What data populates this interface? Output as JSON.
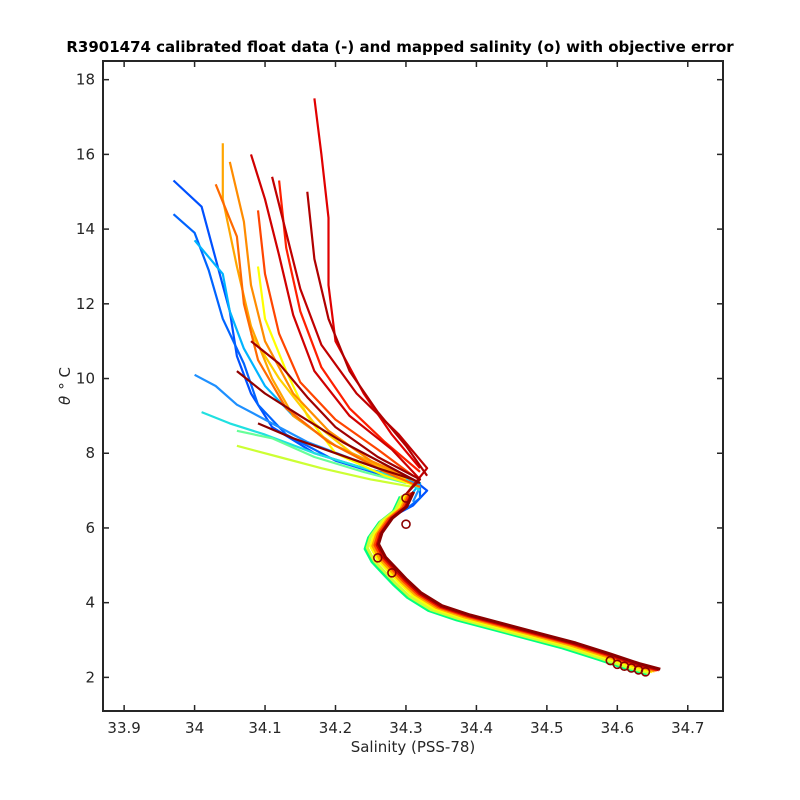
{
  "chart_data": {
    "type": "line",
    "title": "R3901474 calibrated float data (-) and mapped salinity (o) with objective error",
    "xlabel": "Salinity (PSS-78)",
    "ylabel_symbol": "θ",
    "ylabel_unit": "° C",
    "xlim": [
      33.87,
      34.75
    ],
    "ylim": [
      1.1,
      18.5
    ],
    "xticks": [
      33.9,
      34.0,
      34.1,
      34.2,
      34.3,
      34.4,
      34.5,
      34.6,
      34.7
    ],
    "xtick_labels": [
      "33.9",
      "34",
      "34.1",
      "34.2",
      "34.3",
      "34.4",
      "34.5",
      "34.6",
      "34.7"
    ],
    "yticks": [
      2,
      4,
      6,
      8,
      10,
      12,
      14,
      16,
      18
    ],
    "ytick_labels": [
      "2",
      "4",
      "6",
      "8",
      "10",
      "12",
      "14",
      "16",
      "18"
    ],
    "grid": false,
    "colormap": "jet",
    "series": [
      {
        "color": "#0050ff",
        "values": [
          [
            33.97,
            15.3
          ],
          [
            34.01,
            14.6
          ],
          [
            34.03,
            13.2
          ],
          [
            34.05,
            11.8
          ],
          [
            34.06,
            10.6
          ],
          [
            34.08,
            9.6
          ],
          [
            34.11,
            8.7
          ],
          [
            34.17,
            8.0
          ],
          [
            34.24,
            7.6
          ],
          [
            34.31,
            7.3
          ],
          [
            34.33,
            7.0
          ],
          [
            34.31,
            6.6
          ],
          [
            34.29,
            6.4
          ]
        ]
      },
      {
        "color": "#0064ff",
        "values": [
          [
            33.97,
            14.4
          ],
          [
            34.0,
            13.9
          ],
          [
            34.02,
            12.9
          ],
          [
            34.04,
            11.6
          ],
          [
            34.07,
            10.4
          ],
          [
            34.09,
            9.3
          ],
          [
            34.13,
            8.5
          ],
          [
            34.2,
            7.8
          ],
          [
            34.27,
            7.4
          ],
          [
            34.32,
            7.2
          ],
          [
            34.32,
            6.8
          ],
          [
            34.3,
            6.5
          ]
        ]
      },
      {
        "color": "#1e90ff",
        "values": [
          [
            34.0,
            10.1
          ],
          [
            34.03,
            9.8
          ],
          [
            34.06,
            9.3
          ],
          [
            34.1,
            8.9
          ],
          [
            34.16,
            8.3
          ],
          [
            34.23,
            7.8
          ],
          [
            34.29,
            7.4
          ],
          [
            34.32,
            7.1
          ],
          [
            34.31,
            6.7
          ]
        ]
      },
      {
        "color": "#00b4ff",
        "values": [
          [
            34.0,
            13.7
          ],
          [
            34.04,
            12.8
          ],
          [
            34.05,
            11.8
          ],
          [
            34.07,
            10.8
          ],
          [
            34.1,
            9.8
          ],
          [
            34.14,
            9.0
          ],
          [
            34.2,
            8.2
          ],
          [
            34.27,
            7.6
          ],
          [
            34.32,
            7.2
          ],
          [
            34.3,
            6.7
          ]
        ]
      },
      {
        "color": "#20e0e0",
        "values": [
          [
            34.01,
            9.1
          ],
          [
            34.05,
            8.8
          ],
          [
            34.1,
            8.5
          ],
          [
            34.17,
            8.0
          ],
          [
            34.24,
            7.6
          ],
          [
            34.3,
            7.3
          ],
          [
            34.32,
            7.0
          ]
        ]
      },
      {
        "color": "#66ff99",
        "values": [
          [
            34.06,
            8.6
          ],
          [
            34.11,
            8.4
          ],
          [
            34.17,
            7.9
          ],
          [
            34.24,
            7.5
          ],
          [
            34.3,
            7.2
          ]
        ]
      },
      {
        "color": "#ccff33",
        "values": [
          [
            34.06,
            8.2
          ],
          [
            34.12,
            7.9
          ],
          [
            34.18,
            7.6
          ],
          [
            34.25,
            7.3
          ],
          [
            34.31,
            7.1
          ]
        ]
      },
      {
        "color": "#ffff00",
        "values": [
          [
            34.09,
            13.0
          ],
          [
            34.1,
            11.6
          ],
          [
            34.13,
            10.2
          ],
          [
            34.16,
            9.0
          ],
          [
            34.2,
            8.0
          ],
          [
            34.27,
            7.4
          ],
          [
            34.32,
            7.1
          ]
        ]
      },
      {
        "color": "#ffd000",
        "values": [
          [
            34.08,
            11.2
          ],
          [
            34.12,
            10.0
          ],
          [
            34.17,
            8.8
          ],
          [
            34.23,
            7.9
          ],
          [
            34.3,
            7.3
          ]
        ]
      },
      {
        "color": "#ffa500",
        "values": [
          [
            34.04,
            16.3
          ],
          [
            34.04,
            14.8
          ],
          [
            34.06,
            13.0
          ],
          [
            34.08,
            11.4
          ],
          [
            34.11,
            10.0
          ],
          [
            34.14,
            9.0
          ],
          [
            34.2,
            8.2
          ],
          [
            34.27,
            7.6
          ],
          [
            34.32,
            7.2
          ]
        ]
      },
      {
        "color": "#ff8c00",
        "values": [
          [
            34.05,
            15.8
          ],
          [
            34.07,
            14.2
          ],
          [
            34.08,
            12.5
          ],
          [
            34.1,
            11.0
          ],
          [
            34.14,
            9.6
          ],
          [
            34.19,
            8.6
          ],
          [
            34.25,
            7.8
          ],
          [
            34.31,
            7.3
          ]
        ]
      },
      {
        "color": "#ff6a00",
        "values": [
          [
            34.03,
            15.2
          ],
          [
            34.06,
            13.8
          ],
          [
            34.07,
            12.0
          ],
          [
            34.09,
            10.5
          ],
          [
            34.13,
            9.2
          ],
          [
            34.19,
            8.3
          ],
          [
            34.27,
            7.5
          ],
          [
            34.32,
            7.1
          ]
        ]
      },
      {
        "color": "#ff4500",
        "values": [
          [
            34.09,
            14.5
          ],
          [
            34.1,
            12.8
          ],
          [
            34.12,
            11.2
          ],
          [
            34.15,
            9.9
          ],
          [
            34.2,
            8.9
          ],
          [
            34.26,
            8.1
          ],
          [
            34.31,
            7.4
          ]
        ]
      },
      {
        "color": "#ff2000",
        "values": [
          [
            34.12,
            15.3
          ],
          [
            34.13,
            13.5
          ],
          [
            34.15,
            11.8
          ],
          [
            34.18,
            10.3
          ],
          [
            34.22,
            9.2
          ],
          [
            34.27,
            8.3
          ],
          [
            34.32,
            7.5
          ]
        ]
      },
      {
        "color": "#e00000",
        "values": [
          [
            34.17,
            17.5
          ],
          [
            34.18,
            16.0
          ],
          [
            34.19,
            14.3
          ],
          [
            34.19,
            12.5
          ],
          [
            34.2,
            11.0
          ],
          [
            34.24,
            9.6
          ],
          [
            34.28,
            8.5
          ],
          [
            34.32,
            7.6
          ]
        ]
      },
      {
        "color": "#d00000",
        "values": [
          [
            34.08,
            16.0
          ],
          [
            34.1,
            14.8
          ],
          [
            34.12,
            13.3
          ],
          [
            34.14,
            11.7
          ],
          [
            34.17,
            10.2
          ],
          [
            34.22,
            9.0
          ],
          [
            34.28,
            8.1
          ],
          [
            34.32,
            7.3
          ]
        ]
      },
      {
        "color": "#c00000",
        "values": [
          [
            34.11,
            15.4
          ],
          [
            34.13,
            13.9
          ],
          [
            34.15,
            12.4
          ],
          [
            34.18,
            10.9
          ],
          [
            34.23,
            9.6
          ],
          [
            34.29,
            8.5
          ],
          [
            34.33,
            7.6
          ],
          [
            34.3,
            6.9
          ]
        ]
      },
      {
        "color": "#b00000",
        "values": [
          [
            34.16,
            15.0
          ],
          [
            34.17,
            13.2
          ],
          [
            34.19,
            11.6
          ],
          [
            34.22,
            10.2
          ],
          [
            34.26,
            9.1
          ],
          [
            34.3,
            8.2
          ],
          [
            34.33,
            7.4
          ]
        ]
      },
      {
        "color": "#a00000",
        "values": [
          [
            34.08,
            11.0
          ],
          [
            34.12,
            10.4
          ],
          [
            34.16,
            9.5
          ],
          [
            34.2,
            8.7
          ],
          [
            34.26,
            7.9
          ],
          [
            34.32,
            7.3
          ],
          [
            34.3,
            6.9
          ]
        ]
      },
      {
        "color": "#900000",
        "values": [
          [
            34.06,
            10.2
          ],
          [
            34.1,
            9.6
          ],
          [
            34.15,
            9.0
          ],
          [
            34.21,
            8.3
          ],
          [
            34.27,
            7.7
          ],
          [
            34.32,
            7.2
          ]
        ]
      },
      {
        "color": "#8b0000",
        "values": [
          [
            34.09,
            8.8
          ],
          [
            34.14,
            8.4
          ],
          [
            34.2,
            8.0
          ],
          [
            34.26,
            7.6
          ],
          [
            34.31,
            7.3
          ]
        ]
      }
    ],
    "shared_deep_curve": [
      [
        34.3,
        6.9
      ],
      [
        34.29,
        6.5
      ],
      [
        34.27,
        6.2
      ],
      [
        34.255,
        5.8
      ],
      [
        34.25,
        5.5
      ],
      [
        34.26,
        5.15
      ],
      [
        34.275,
        4.85
      ],
      [
        34.29,
        4.55
      ],
      [
        34.31,
        4.2
      ],
      [
        34.34,
        3.85
      ],
      [
        34.38,
        3.6
      ],
      [
        34.43,
        3.35
      ],
      [
        34.48,
        3.1
      ],
      [
        34.53,
        2.85
      ],
      [
        34.58,
        2.55
      ],
      [
        34.62,
        2.3
      ],
      [
        34.65,
        2.15
      ]
    ],
    "shared_deep_offsets": [
      {
        "color": "#00ff7f",
        "dx": -0.008,
        "dy": -0.06
      },
      {
        "color": "#ccff33",
        "dx": -0.005,
        "dy": -0.03
      },
      {
        "color": "#ffff00",
        "dx": 0.0,
        "dy": 0.0
      },
      {
        "color": "#ffa500",
        "dx": 0.003,
        "dy": 0.02
      },
      {
        "color": "#ff4500",
        "dx": 0.006,
        "dy": 0.04
      },
      {
        "color": "#d00000",
        "dx": 0.009,
        "dy": 0.05
      },
      {
        "color": "#8b0000",
        "dx": 0.011,
        "dy": 0.07
      }
    ],
    "mapped_points": {
      "color": "#8b0000",
      "values": [
        [
          34.3,
          6.8
        ],
        [
          34.3,
          6.1
        ],
        [
          34.26,
          5.2
        ],
        [
          34.28,
          4.8
        ],
        [
          34.59,
          2.45
        ],
        [
          34.6,
          2.35
        ],
        [
          34.61,
          2.3
        ],
        [
          34.62,
          2.25
        ],
        [
          34.63,
          2.2
        ],
        [
          34.64,
          2.15
        ]
      ]
    }
  }
}
